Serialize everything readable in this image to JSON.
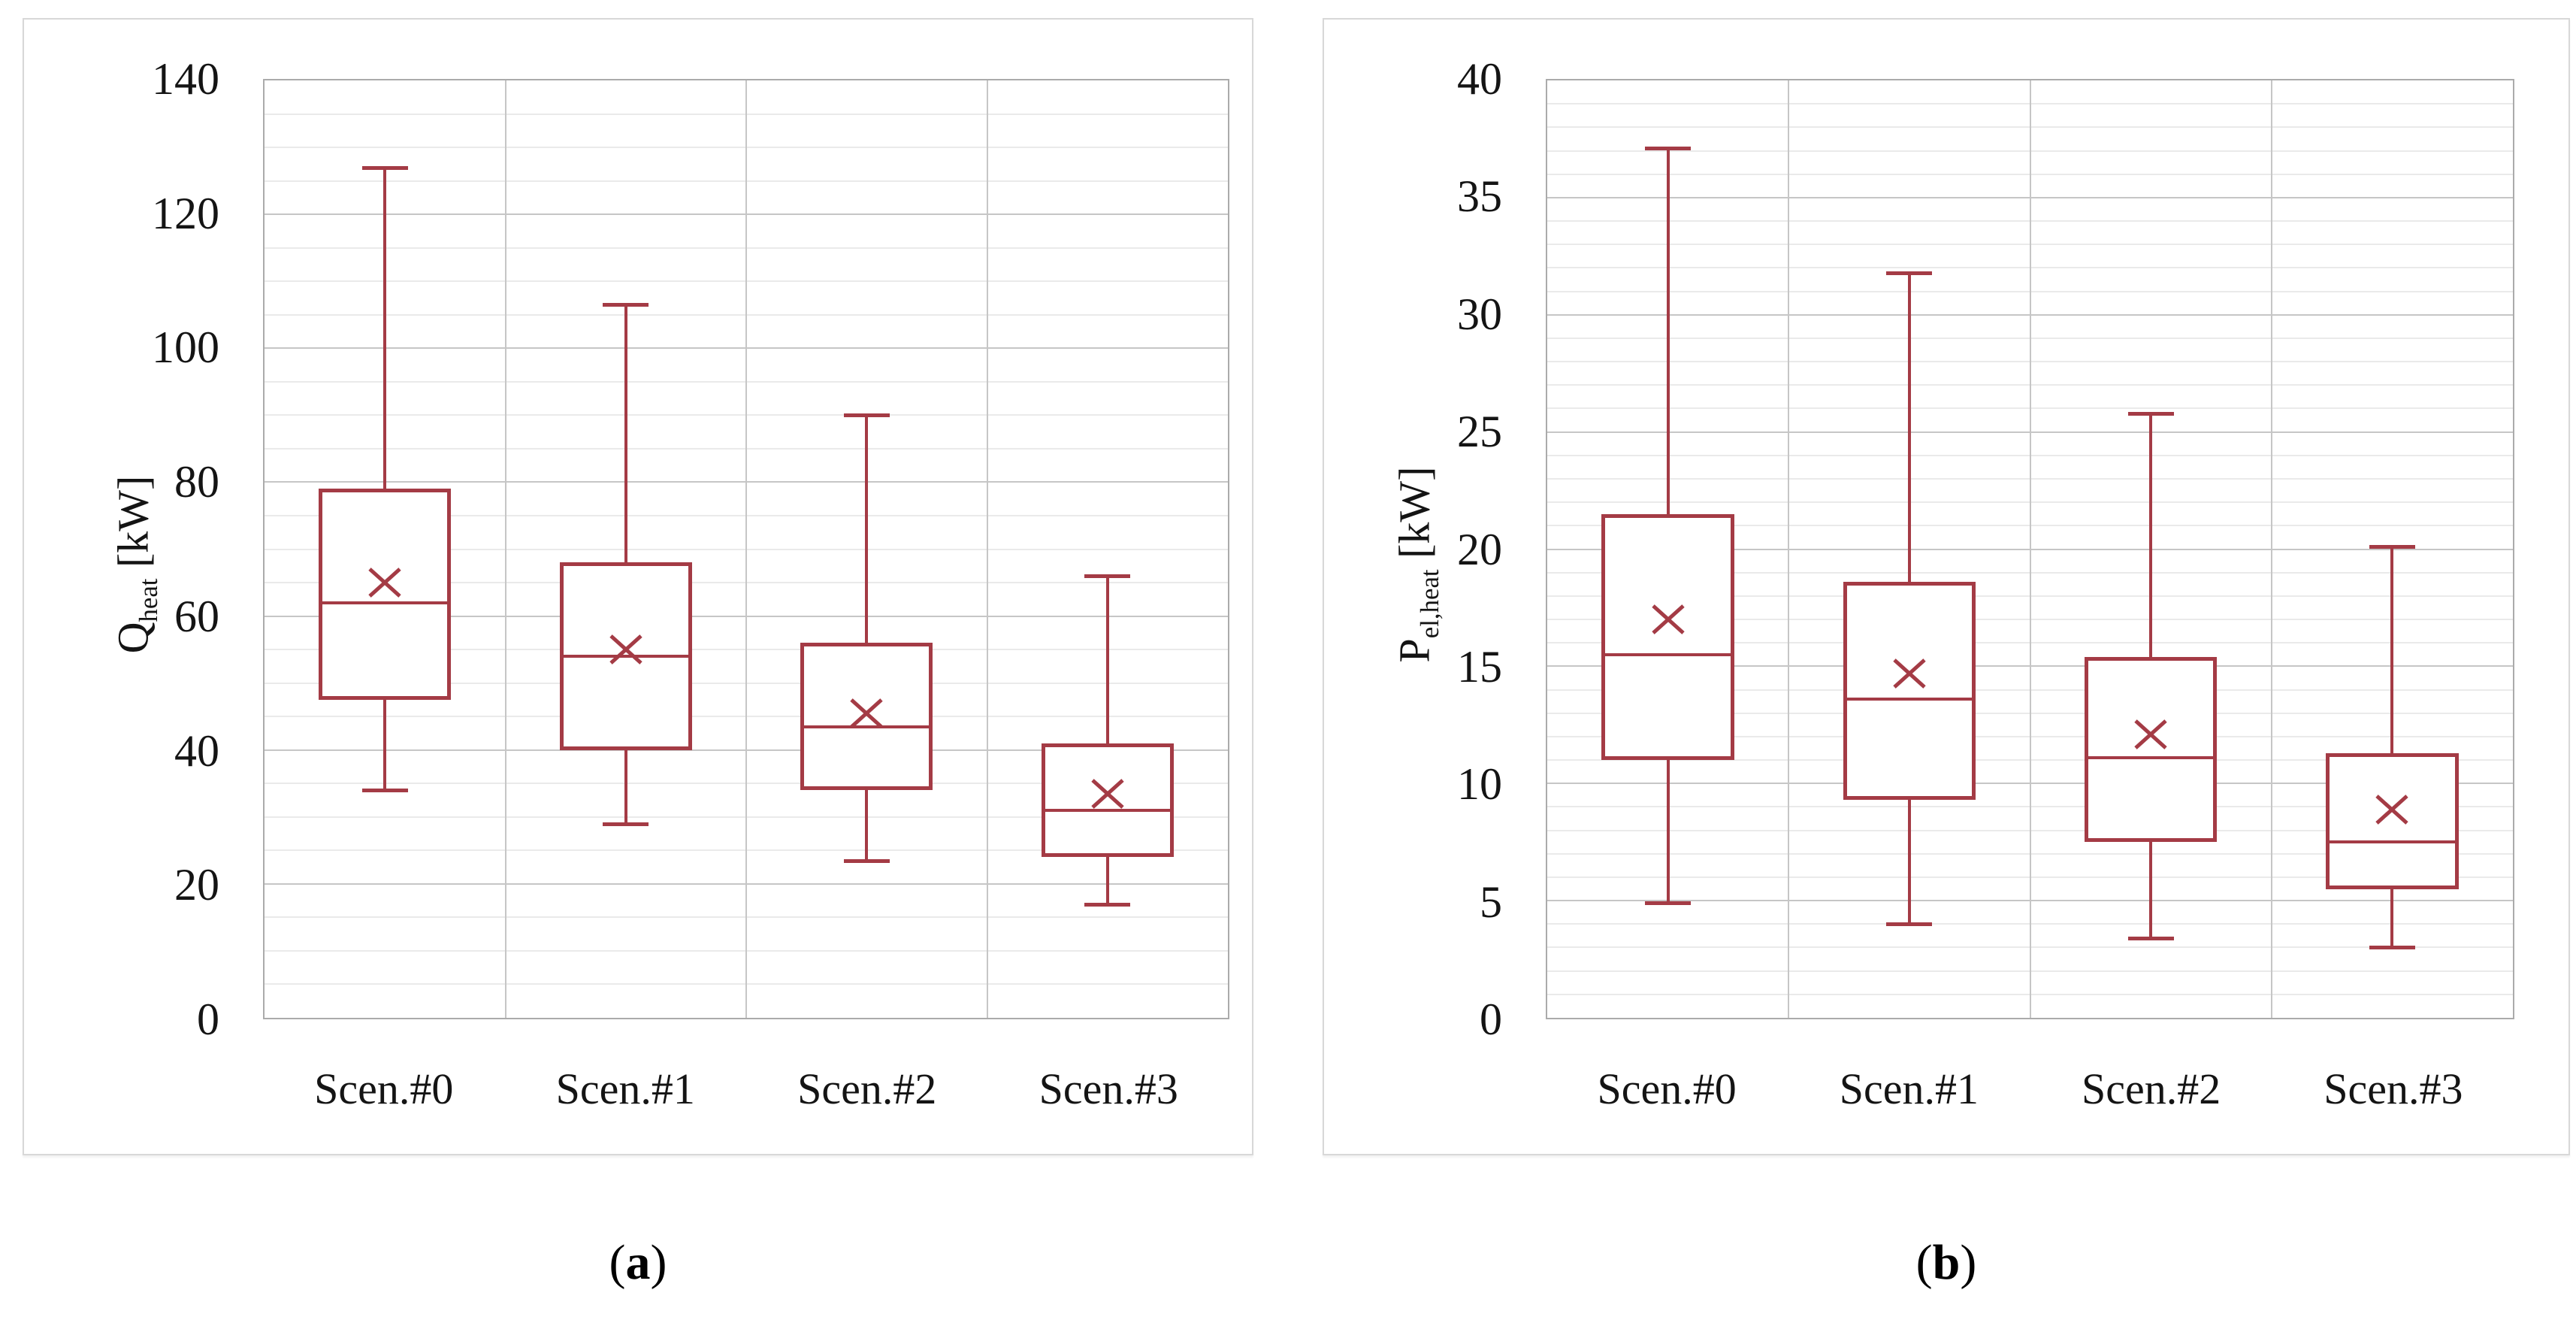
{
  "page_background": "#ffffff",
  "box_color": "#a43b45",
  "chart_data": [
    {
      "type": "boxplot",
      "caption_open": "(",
      "caption_letter": "a",
      "caption_close": ")",
      "ylabel": "Q_heat [kW]",
      "ylabel_parts": {
        "base": "Q",
        "sub": "heat",
        "unit": " [kW]"
      },
      "ylim": [
        0,
        140
      ],
      "ytick_major": 20,
      "ytick_minor": 5,
      "ytick_labels": [
        "140",
        "120",
        "100",
        "80",
        "60",
        "40",
        "20",
        "0"
      ],
      "grid": "on",
      "categories": [
        "Scen.#0",
        "Scen.#1",
        "Scen.#2",
        "Scen.#3"
      ],
      "series": [
        {
          "category": "Scen.#0",
          "whisker_low": 34,
          "q1": 47.5,
          "median": 62,
          "mean": 65,
          "q3": 79,
          "whisker_high": 127
        },
        {
          "category": "Scen.#1",
          "whisker_low": 29,
          "q1": 40,
          "median": 54,
          "mean": 55,
          "q3": 68,
          "whisker_high": 106.5
        },
        {
          "category": "Scen.#2",
          "whisker_low": 23.5,
          "q1": 34,
          "median": 43.5,
          "mean": 45.5,
          "q3": 56,
          "whisker_high": 90
        },
        {
          "category": "Scen.#3",
          "whisker_low": 17,
          "q1": 24,
          "median": 31,
          "mean": 33.5,
          "q3": 41,
          "whisker_high": 66
        }
      ]
    },
    {
      "type": "boxplot",
      "caption_open": "(",
      "caption_letter": "b",
      "caption_close": ")",
      "ylabel": "P_el,heat [kW]",
      "ylabel_parts": {
        "base": "P",
        "sub": "el,heat",
        "unit": " [kW]"
      },
      "ylim": [
        0,
        40
      ],
      "ytick_major": 5,
      "ytick_minor": 1,
      "ytick_labels": [
        "40",
        "35",
        "30",
        "25",
        "20",
        "15",
        "10",
        "5",
        "0"
      ],
      "grid": "on",
      "categories": [
        "Scen.#0",
        "Scen.#1",
        "Scen.#2",
        "Scen.#3"
      ],
      "series": [
        {
          "category": "Scen.#0",
          "whisker_low": 4.9,
          "q1": 11,
          "median": 15.5,
          "mean": 17,
          "q3": 21.5,
          "whisker_high": 37.1
        },
        {
          "category": "Scen.#1",
          "whisker_low": 4,
          "q1": 9.3,
          "median": 13.6,
          "mean": 14.7,
          "q3": 18.6,
          "whisker_high": 31.8
        },
        {
          "category": "Scen.#2",
          "whisker_low": 3.4,
          "q1": 7.5,
          "median": 11.1,
          "mean": 12.1,
          "q3": 15.4,
          "whisker_high": 25.8
        },
        {
          "category": "Scen.#3",
          "whisker_low": 3,
          "q1": 5.5,
          "median": 7.5,
          "mean": 8.9,
          "q3": 11.3,
          "whisker_high": 20.1
        }
      ]
    }
  ]
}
